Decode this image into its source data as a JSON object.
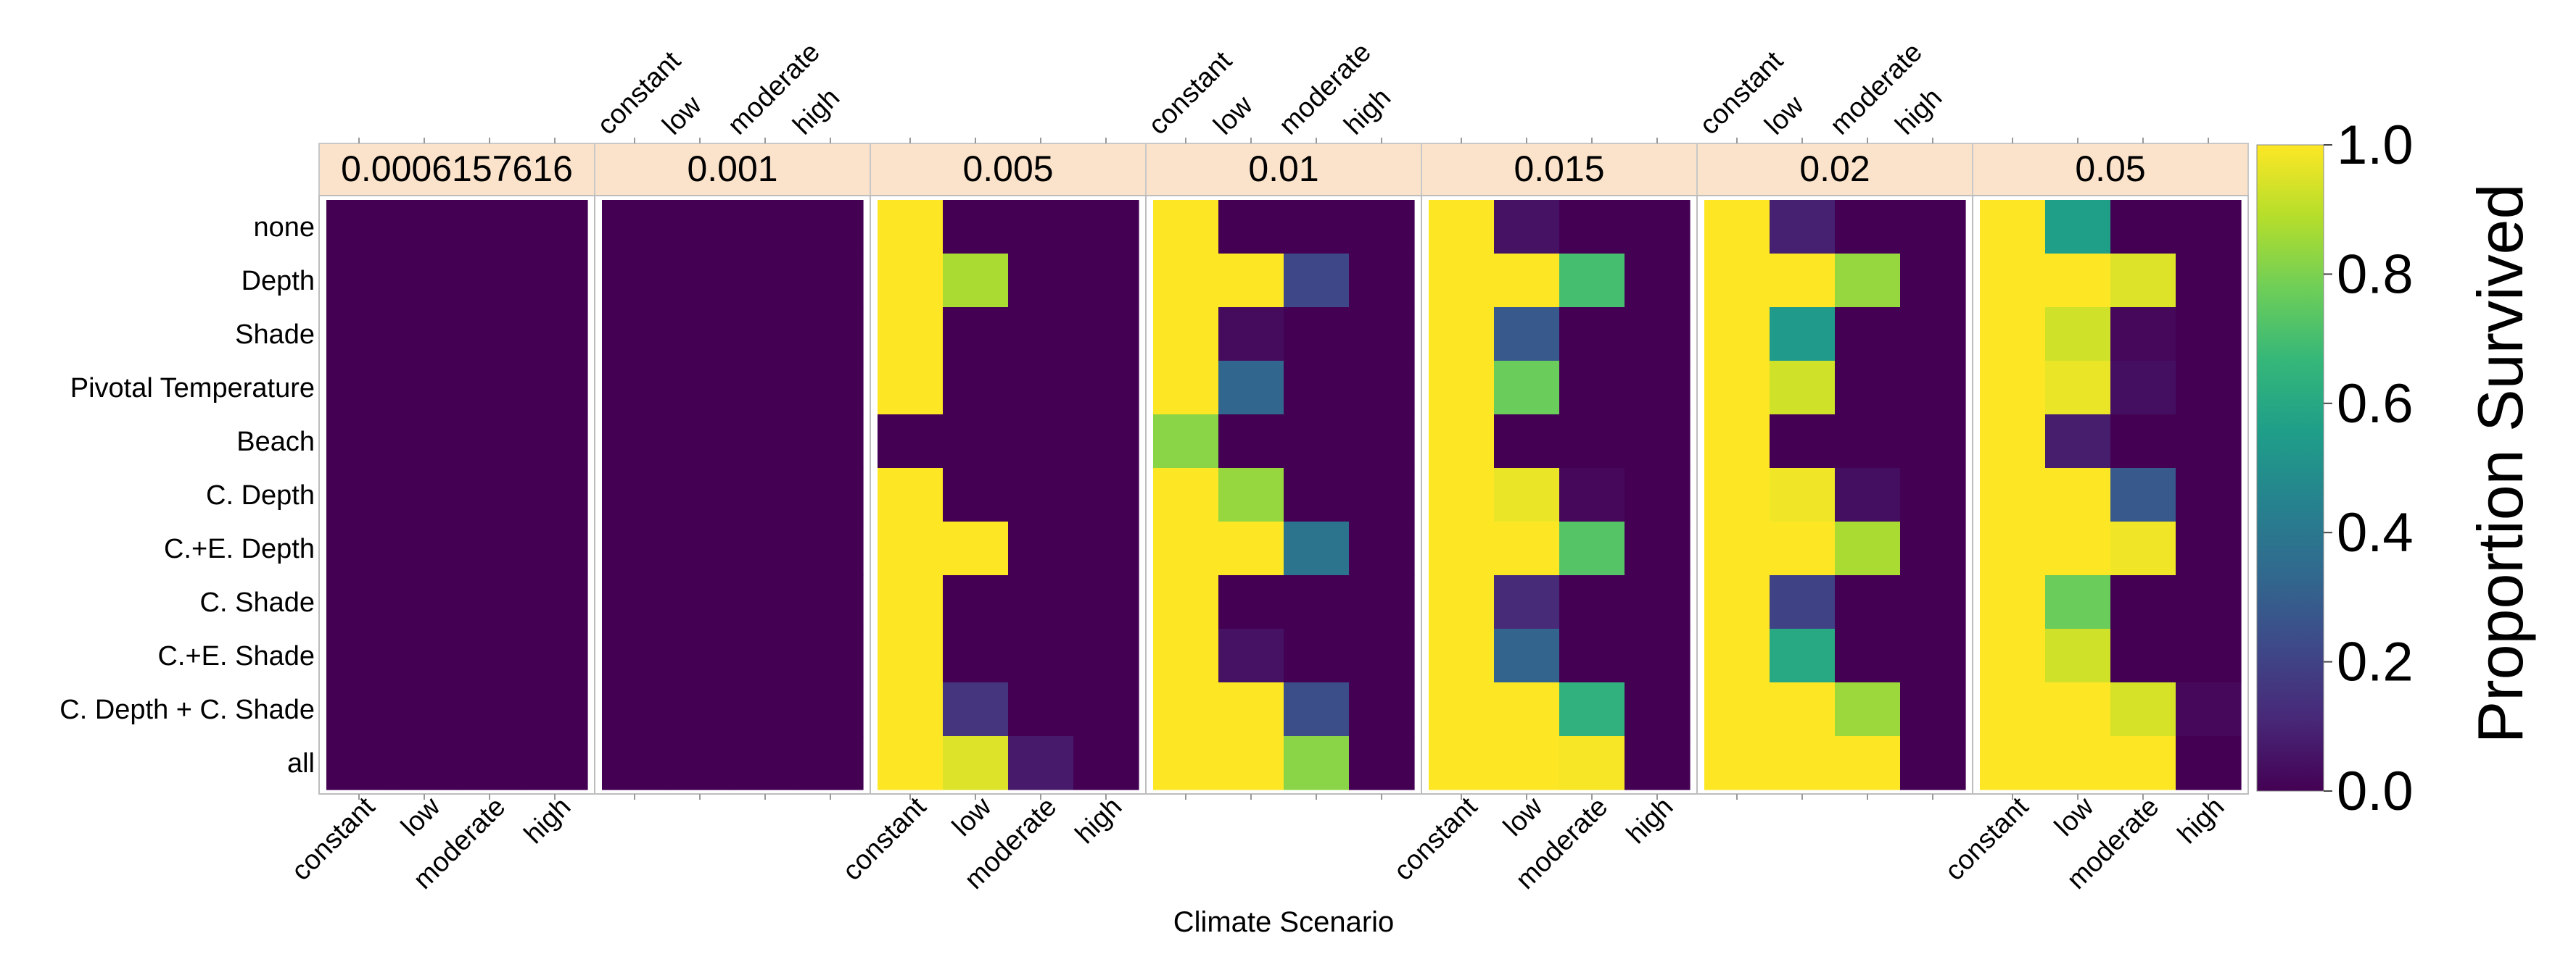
{
  "chart_data": {
    "type": "heatmap",
    "title": "",
    "xlabel": "Climate Scenario",
    "colorbar_label": "Proportion Survived",
    "colorbar_ticks": [
      "0.0",
      "0.2",
      "0.4",
      "0.6",
      "0.8",
      "1.0"
    ],
    "colorbar_range": [
      0,
      1
    ],
    "colormap": "viridis",
    "colormap_stops": [
      "#440154",
      "#482878",
      "#3e4989",
      "#31688e",
      "#26828e",
      "#1f9e89",
      "#35b779",
      "#6ece58",
      "#b5de2b",
      "#fde725"
    ],
    "facet_header_color": "#fbe3cb",
    "scenarios": [
      "constant",
      "low",
      "moderate",
      "high"
    ],
    "rows": [
      "none",
      "Depth",
      "Shade",
      "Pivotal Temperature",
      "Beach",
      "C. Depth",
      "C.+E. Depth",
      "C. Shade",
      "C.+E. Shade",
      "C. Depth + C. Shade",
      "all"
    ],
    "panels": [
      {
        "label": "0.0006157616",
        "values": [
          [
            0,
            0,
            0,
            0
          ],
          [
            0,
            0,
            0,
            0
          ],
          [
            0,
            0,
            0,
            0
          ],
          [
            0,
            0,
            0,
            0
          ],
          [
            0,
            0,
            0,
            0
          ],
          [
            0,
            0,
            0,
            0
          ],
          [
            0,
            0,
            0,
            0
          ],
          [
            0,
            0,
            0,
            0
          ],
          [
            0,
            0,
            0,
            0
          ],
          [
            0,
            0,
            0,
            0
          ],
          [
            0,
            0,
            0,
            0
          ]
        ]
      },
      {
        "label": "0.001",
        "values": [
          [
            0,
            0,
            0,
            0
          ],
          [
            0,
            0,
            0,
            0
          ],
          [
            0,
            0,
            0,
            0
          ],
          [
            0,
            0,
            0,
            0
          ],
          [
            0,
            0,
            0,
            0
          ],
          [
            0,
            0,
            0,
            0
          ],
          [
            0,
            0,
            0,
            0
          ],
          [
            0,
            0,
            0,
            0
          ],
          [
            0,
            0,
            0,
            0
          ],
          [
            0,
            0,
            0,
            0
          ],
          [
            0,
            0,
            0,
            0
          ]
        ]
      },
      {
        "label": "0.005",
        "values": [
          [
            1,
            0,
            0,
            0
          ],
          [
            1,
            0.87,
            0,
            0
          ],
          [
            1,
            0,
            0,
            0
          ],
          [
            1,
            0,
            0,
            0
          ],
          [
            0,
            0,
            0,
            0
          ],
          [
            1,
            0,
            0,
            0
          ],
          [
            1,
            1,
            0,
            0
          ],
          [
            1,
            0,
            0,
            0
          ],
          [
            1,
            0,
            0,
            0
          ],
          [
            1,
            0.15,
            0,
            0
          ],
          [
            1,
            0.95,
            0.07,
            0
          ]
        ]
      },
      {
        "label": "0.01",
        "values": [
          [
            1,
            0,
            0,
            0
          ],
          [
            1,
            1,
            0.22,
            0
          ],
          [
            1,
            0.03,
            0,
            0
          ],
          [
            1,
            0.33,
            0,
            0
          ],
          [
            0.82,
            0,
            0,
            0
          ],
          [
            1,
            0.84,
            0,
            0
          ],
          [
            1,
            1,
            0.38,
            0
          ],
          [
            1,
            0,
            0,
            0
          ],
          [
            1,
            0.05,
            0,
            0
          ],
          [
            1,
            1,
            0.24,
            0
          ],
          [
            1,
            1,
            0.82,
            0
          ]
        ]
      },
      {
        "label": "0.015",
        "values": [
          [
            1,
            0.05,
            0,
            0
          ],
          [
            1,
            1,
            0.7,
            0
          ],
          [
            1,
            0.28,
            0,
            0
          ],
          [
            1,
            0.77,
            0,
            0
          ],
          [
            1,
            0,
            0,
            0
          ],
          [
            1,
            0.97,
            0.02,
            0
          ],
          [
            1,
            1,
            0.73,
            0
          ],
          [
            1,
            0.12,
            0,
            0
          ],
          [
            1,
            0.32,
            0,
            0
          ],
          [
            1,
            1,
            0.64,
            0
          ],
          [
            1,
            1,
            0.99,
            0
          ]
        ]
      },
      {
        "label": "0.02",
        "values": [
          [
            1,
            0.09,
            0,
            0
          ],
          [
            1,
            1,
            0.84,
            0
          ],
          [
            1,
            0.54,
            0,
            0
          ],
          [
            1,
            0.93,
            0,
            0
          ],
          [
            1,
            0,
            0,
            0
          ],
          [
            1,
            0.98,
            0.04,
            0
          ],
          [
            1,
            1,
            0.87,
            0
          ],
          [
            1,
            0.2,
            0,
            0
          ],
          [
            1,
            0.6,
            0,
            0
          ],
          [
            1,
            1,
            0.85,
            0
          ],
          [
            1,
            1,
            1,
            0
          ]
        ]
      },
      {
        "label": "0.05",
        "values": [
          [
            1,
            0.56,
            0,
            0
          ],
          [
            1,
            1,
            0.95,
            0
          ],
          [
            1,
            0.93,
            0.02,
            0
          ],
          [
            1,
            0.97,
            0.04,
            0
          ],
          [
            1,
            0.08,
            0,
            0
          ],
          [
            1,
            1,
            0.28,
            0
          ],
          [
            1,
            1,
            0.98,
            0
          ],
          [
            1,
            0.77,
            0,
            0
          ],
          [
            1,
            0.93,
            0,
            0
          ],
          [
            1,
            1,
            0.94,
            0.02
          ],
          [
            1,
            1,
            1,
            0
          ]
        ]
      }
    ]
  }
}
